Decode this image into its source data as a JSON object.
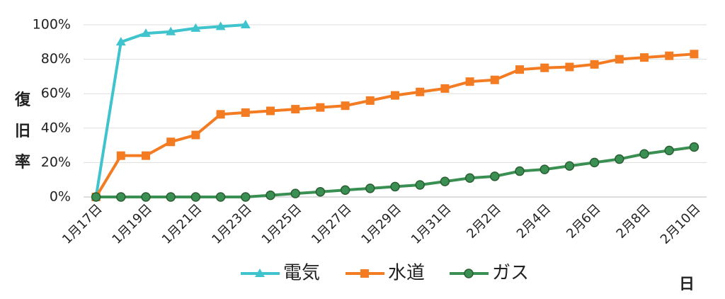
{
  "chart_data": {
    "type": "line",
    "y_label": "復旧率",
    "x_label": "日",
    "categories": [
      "1月17日",
      null,
      "1月19日",
      null,
      "1月21日",
      null,
      "1月23日",
      null,
      "1月25日",
      null,
      "1月27日",
      null,
      "1月29日",
      null,
      "1月31日",
      null,
      "2月2日",
      null,
      "2月4日",
      null,
      "2月6日",
      null,
      "2月8日",
      null,
      "2月10日"
    ],
    "series": [
      {
        "name": "電気",
        "color": "#3fc3cc",
        "marker": "triangle",
        "values": [
          0,
          90,
          95,
          96,
          98,
          99,
          100,
          null,
          null,
          null,
          null,
          null,
          null,
          null,
          null,
          null,
          null,
          null,
          null,
          null,
          null,
          null,
          null,
          null,
          null
        ]
      },
      {
        "name": "水道",
        "color": "#f37b22",
        "marker": "square",
        "values": [
          0,
          24,
          24,
          32,
          36,
          48,
          49,
          50,
          51,
          52,
          53,
          56,
          59,
          61,
          63,
          67,
          68,
          74,
          75,
          75.5,
          77,
          80,
          81,
          82,
          83
        ]
      },
      {
        "name": "ガス",
        "color": "#3a8f52",
        "marker": "circle",
        "values": [
          0,
          0,
          0,
          0,
          0,
          0,
          0,
          1,
          2,
          3,
          4,
          5,
          6,
          7,
          9,
          11,
          12,
          15,
          16,
          18,
          20,
          22,
          25,
          27,
          29
        ]
      }
    ],
    "ylim": [
      0,
      100
    ],
    "yticks": [
      {
        "value": 0,
        "label": "0%"
      },
      {
        "value": 20,
        "label": "20%"
      },
      {
        "value": 40,
        "label": "40%"
      },
      {
        "value": 60,
        "label": "60%"
      },
      {
        "value": 80,
        "label": "80%"
      },
      {
        "value": 100,
        "label": "100%"
      }
    ],
    "grid": true,
    "legend": "bottom"
  }
}
